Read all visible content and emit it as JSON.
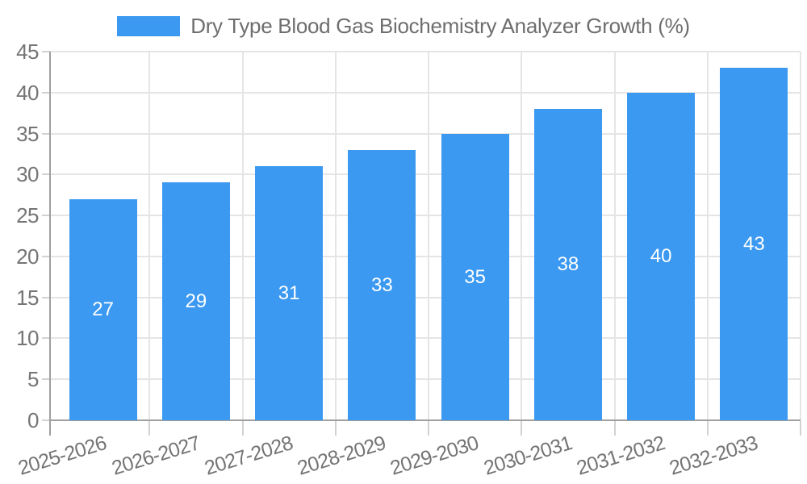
{
  "legend": {
    "label": "Dry Type Blood Gas Biochemistry Analyzer Growth (%)"
  },
  "colors": {
    "bar": "#3B99F1",
    "grid": "#E5E5E5",
    "axis": "#A0A0A0",
    "tick": "#D2D2D2",
    "axis_label": "#757575",
    "title": "#6E6E6E",
    "value_label": "#FFFFFF",
    "background": "#FFFFFF"
  },
  "chart_data": {
    "type": "bar",
    "title": "Dry Type Blood Gas Biochemistry Analyzer Growth (%)",
    "categories": [
      "2025-2026",
      "2026-2027",
      "2027-2028",
      "2028-2029",
      "2029-2030",
      "2030-2031",
      "2031-2032",
      "2032-2033"
    ],
    "values": [
      27,
      29,
      31,
      33,
      35,
      38,
      40,
      43
    ],
    "xlabel": "",
    "ylabel": "",
    "ylim": [
      0,
      45
    ],
    "yticks": [
      0,
      5,
      10,
      15,
      20,
      25,
      30,
      35,
      40,
      45
    ],
    "grid": true,
    "legend_position": "top",
    "bar_labels": true,
    "x_label_rotation_deg": -17
  }
}
